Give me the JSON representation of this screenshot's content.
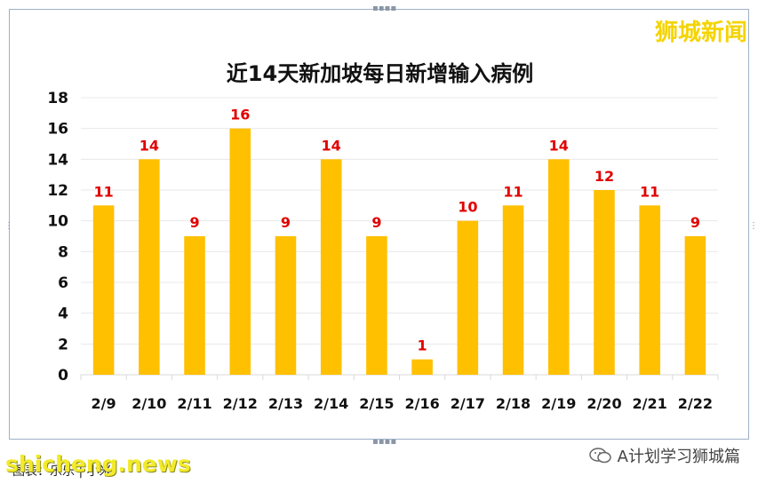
{
  "brand": "狮城新闻",
  "watermark": "shicheng.news",
  "footer_left": "图表：乐乐 | 小米",
  "footer_right": "A计划学习狮城篇",
  "icons": {
    "wechat": "wechat-icon"
  },
  "colors": {
    "bar": "#FFC000",
    "label": "#E00000",
    "grid": "#E8E8E8",
    "frame": "#9FB0C8"
  },
  "chart_data": {
    "type": "bar",
    "title": "近14天新加坡每日新增输入病例",
    "categories": [
      "2/9",
      "2/10",
      "2/11",
      "2/12",
      "2/13",
      "2/14",
      "2/15",
      "2/16",
      "2/17",
      "2/18",
      "2/19",
      "2/20",
      "2/21",
      "2/22"
    ],
    "values": [
      11,
      14,
      9,
      16,
      9,
      14,
      9,
      1,
      10,
      11,
      14,
      12,
      11,
      9
    ],
    "data_labels": [
      "11",
      "14",
      "9",
      "16",
      "9",
      "14",
      "9",
      "1",
      "10",
      "11",
      "14",
      "12",
      "11",
      "9"
    ],
    "xlabel": "",
    "ylabel": "",
    "ylim": [
      0,
      18
    ],
    "yticks": [
      0,
      2,
      4,
      6,
      8,
      10,
      12,
      14,
      16,
      18
    ],
    "ytick_labels": [
      "0",
      "2",
      "4",
      "6",
      "8",
      "10",
      "12",
      "14",
      "16",
      "18"
    ],
    "grid": true,
    "legend": "none"
  }
}
